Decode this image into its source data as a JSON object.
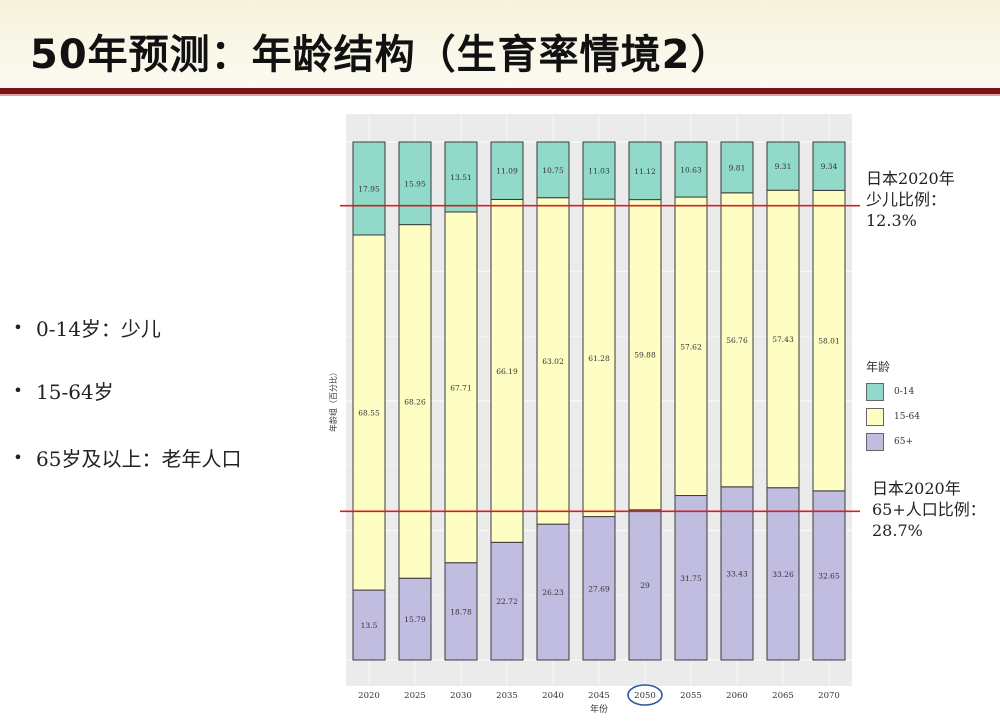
{
  "slide": {
    "title": "50年预测：年龄结构（生育率情境2）"
  },
  "bullets": [
    {
      "symbol": "•",
      "text": "0-14岁：少儿"
    },
    {
      "symbol": "•",
      "text": "15-64岁"
    },
    {
      "symbol": "•",
      "text": "65岁及以上：老年人口"
    }
  ],
  "annotations": {
    "child_ratio": {
      "line1": "日本2020年",
      "line2": "少儿比例：",
      "line3": "12.3%"
    },
    "elderly_ratio": {
      "line1": "日本2020年",
      "line2": "65+人口比例：",
      "line3": "28.7%"
    }
  },
  "chart_data": {
    "type": "bar",
    "stacked": true,
    "title": "",
    "xlabel": "年份",
    "ylabel": "年龄组（百分比）",
    "ylim": [
      0,
      100
    ],
    "categories": [
      "2020",
      "2025",
      "2030",
      "2035",
      "2040",
      "2045",
      "2050",
      "2055",
      "2060",
      "2065",
      "2070"
    ],
    "series": [
      {
        "name": "65+",
        "color": "#c0bde0",
        "values": [
          13.5,
          15.79,
          18.78,
          22.72,
          26.23,
          27.69,
          29,
          31.75,
          33.43,
          33.26,
          32.65
        ]
      },
      {
        "name": "15-64",
        "color": "#fefdc3",
        "values": [
          68.55,
          68.26,
          67.71,
          66.19,
          63.02,
          61.28,
          59.88,
          57.62,
          56.76,
          57.43,
          58.01
        ]
      },
      {
        "name": "0-14",
        "color": "#91d9c8",
        "values": [
          17.95,
          15.95,
          13.51,
          11.09,
          10.75,
          11.03,
          11.12,
          10.63,
          9.81,
          9.31,
          9.34
        ]
      }
    ],
    "legend": {
      "title": "年龄",
      "position": "right",
      "order": [
        "0-14",
        "15-64",
        "65+"
      ]
    },
    "reference_lines": [
      {
        "value": 87.7,
        "color": "#d42020",
        "meaning": "日本2020年少儿比例 12.3%"
      },
      {
        "value": 28.7,
        "color": "#d42020",
        "meaning": "日本2020年65+人口比例 28.7%"
      }
    ],
    "highlighted_category": "2050",
    "grid": true
  }
}
